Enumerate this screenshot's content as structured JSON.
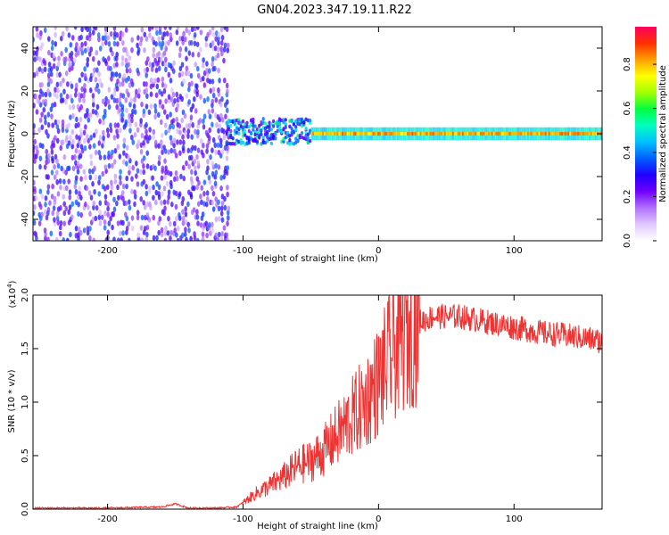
{
  "title": "GN04.2023.347.19.11.R22",
  "colors": {
    "line": "#ee3333",
    "axis": "#000000",
    "background": "#ffffff"
  },
  "chart_data": [
    {
      "type": "heatmap",
      "xlabel": "Height of straight line (km)",
      "ylabel": "Frequency (Hz)",
      "xlim": [
        -255,
        165
      ],
      "ylim": [
        -50,
        50
      ],
      "x_ticks": [
        -200,
        -100,
        0,
        100
      ],
      "x_tick_labels": [
        "-200",
        "-100",
        "0",
        "100"
      ],
      "y_ticks": [
        -40,
        -20,
        0,
        20,
        40
      ],
      "y_tick_labels": [
        "-40",
        "-20",
        "0",
        "20",
        "40"
      ],
      "colorbar": {
        "label": "Normalized spectral amplitude",
        "range": [
          0,
          0.97
        ],
        "ticks": [
          0.0,
          0.2,
          0.4,
          0.6,
          0.8
        ],
        "tick_labels": [
          "0.0",
          "0.2",
          "0.4",
          "0.6",
          "0.8"
        ],
        "colormap": [
          "#ffffff",
          "#e0c8ff",
          "#b070ff",
          "#7000ff",
          "#2000ff",
          "#0060ff",
          "#00c0ff",
          "#00ffc0",
          "#00ff40",
          "#a0ff00",
          "#ffff00",
          "#ffa000",
          "#ff3000",
          "#ff0060"
        ]
      },
      "regions": [
        {
          "label": "broadband noise",
          "x_range": [
            -255,
            -112
          ],
          "freq_range": [
            -50,
            50
          ],
          "amplitude": 0.15
        },
        {
          "label": "tone onset",
          "x_range": [
            -112,
            -50
          ],
          "freq_center": 1,
          "freq_halfwidth": 6,
          "amplitude": 0.4
        },
        {
          "label": "narrowband tone",
          "x_range": [
            -50,
            165
          ],
          "freq_center": 0,
          "freq_halfwidth": 3,
          "amplitude": 0.9
        }
      ]
    },
    {
      "type": "line",
      "xlabel": "Height of straight line (km)",
      "ylabel": "SNR (10 * v/v)",
      "y_multiplier": "(x10",
      "y_multiplier_exp": "4",
      "y_multiplier_close": ")",
      "xlim": [
        -255,
        165
      ],
      "ylim": [
        0,
        2.0
      ],
      "x_ticks": [
        -200,
        -100,
        0,
        100
      ],
      "x_tick_labels": [
        "-200",
        "-100",
        "0",
        "100"
      ],
      "y_ticks": [
        0.0,
        0.5,
        1.0,
        1.5,
        2.0
      ],
      "y_tick_labels": [
        "0.0",
        "0.5",
        "1.0",
        "1.5",
        "2.0"
      ],
      "series": [
        {
          "x": [
            -255,
            -200,
            -160,
            -150,
            -140,
            -120,
            -105,
            -100,
            -90,
            -80,
            -70,
            -60,
            -50,
            -40,
            -30,
            -20,
            -10,
            0,
            10,
            20,
            30,
            40,
            60,
            80,
            100,
            120,
            140,
            165
          ],
          "y": [
            0.01,
            0.01,
            0.02,
            0.05,
            0.01,
            0.01,
            0.02,
            0.06,
            0.15,
            0.22,
            0.3,
            0.4,
            0.45,
            0.55,
            0.7,
            0.85,
            1.0,
            1.2,
            1.45,
            1.65,
            1.75,
            1.8,
            1.8,
            1.75,
            1.7,
            1.65,
            1.62,
            1.57
          ]
        }
      ]
    }
  ]
}
